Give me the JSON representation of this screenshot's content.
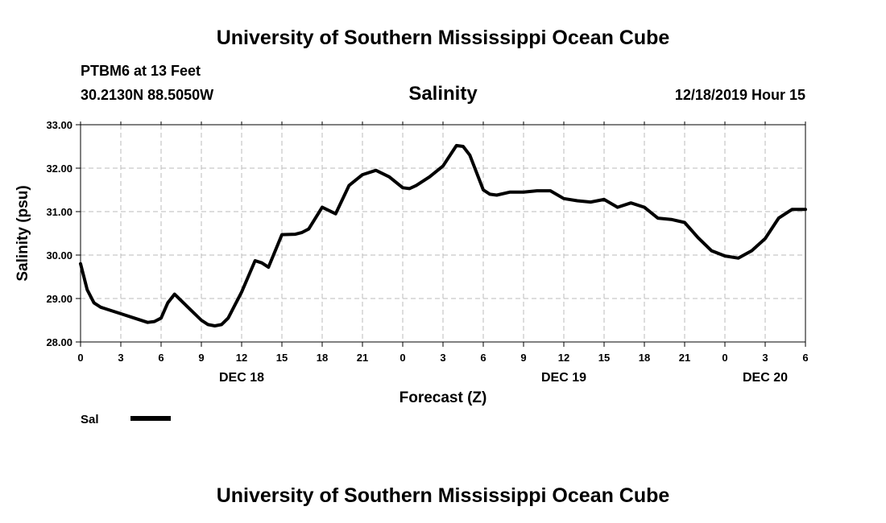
{
  "header": {
    "top_title": "University of Southern Mississippi Ocean Cube",
    "bottom_title": "University of Southern Mississippi Ocean Cube",
    "station": "PTBM6 at 13 Feet",
    "coords": "30.2130N 88.5050W",
    "issued": "12/18/2019 Hour 15"
  },
  "chart_data": {
    "type": "line",
    "title": "Salinity",
    "xlabel": "Forecast (Z)",
    "ylabel": "Salinity (psu)",
    "xlim": [
      0,
      54
    ],
    "ylim": [
      28,
      33
    ],
    "y_ticks": [
      "28.00",
      "29.00",
      "30.00",
      "31.00",
      "32.00",
      "33.00"
    ],
    "x_tick_labels": [
      "0",
      "3",
      "6",
      "9",
      "12",
      "15",
      "18",
      "21",
      "0",
      "3",
      "6",
      "9",
      "12",
      "15",
      "18",
      "21",
      "0",
      "3",
      "6"
    ],
    "x_tick_hours": [
      0,
      3,
      6,
      9,
      12,
      15,
      18,
      21,
      24,
      27,
      30,
      33,
      36,
      39,
      42,
      45,
      48,
      51,
      54
    ],
    "day_labels": [
      {
        "label": "DEC 18",
        "hour": 12
      },
      {
        "label": "DEC 19",
        "hour": 36
      },
      {
        "label": "DEC 20",
        "hour": 51
      }
    ],
    "grid": true,
    "series": [
      {
        "name": "Sal",
        "color": "#000000",
        "x": [
          0,
          0.5,
          1,
          1.5,
          2,
          3,
          4,
          5,
          5.5,
          6,
          6.5,
          7,
          8,
          9,
          9.5,
          10,
          10.5,
          11,
          12,
          13,
          13.5,
          14,
          15,
          16,
          16.5,
          17,
          18,
          19,
          20,
          21,
          22,
          23,
          24,
          24.5,
          25,
          26,
          27,
          28,
          28.5,
          29,
          30,
          30.5,
          31,
          32,
          33,
          34,
          35,
          36,
          37,
          38,
          39,
          40,
          41,
          42,
          43,
          44,
          45,
          46,
          47,
          48,
          49,
          50,
          51,
          52,
          53,
          54
        ],
        "values": [
          29.8,
          29.2,
          28.9,
          28.8,
          28.75,
          28.65,
          28.55,
          28.45,
          28.47,
          28.55,
          28.9,
          29.1,
          28.8,
          28.5,
          28.4,
          28.37,
          28.4,
          28.55,
          29.15,
          29.87,
          29.82,
          29.72,
          30.47,
          30.48,
          30.52,
          30.6,
          31.1,
          30.95,
          31.6,
          31.85,
          31.95,
          31.8,
          31.55,
          31.53,
          31.6,
          31.8,
          32.05,
          32.52,
          32.5,
          32.3,
          31.5,
          31.4,
          31.38,
          31.45,
          31.45,
          31.48,
          31.48,
          31.3,
          31.25,
          31.22,
          31.28,
          31.1,
          31.2,
          31.1,
          30.85,
          30.82,
          30.75,
          30.4,
          30.1,
          29.98,
          29.93,
          30.1,
          30.38,
          30.85,
          31.05,
          31.05
        ]
      }
    ],
    "legend": {
      "position": "bottom-left",
      "label": "Sal"
    }
  }
}
